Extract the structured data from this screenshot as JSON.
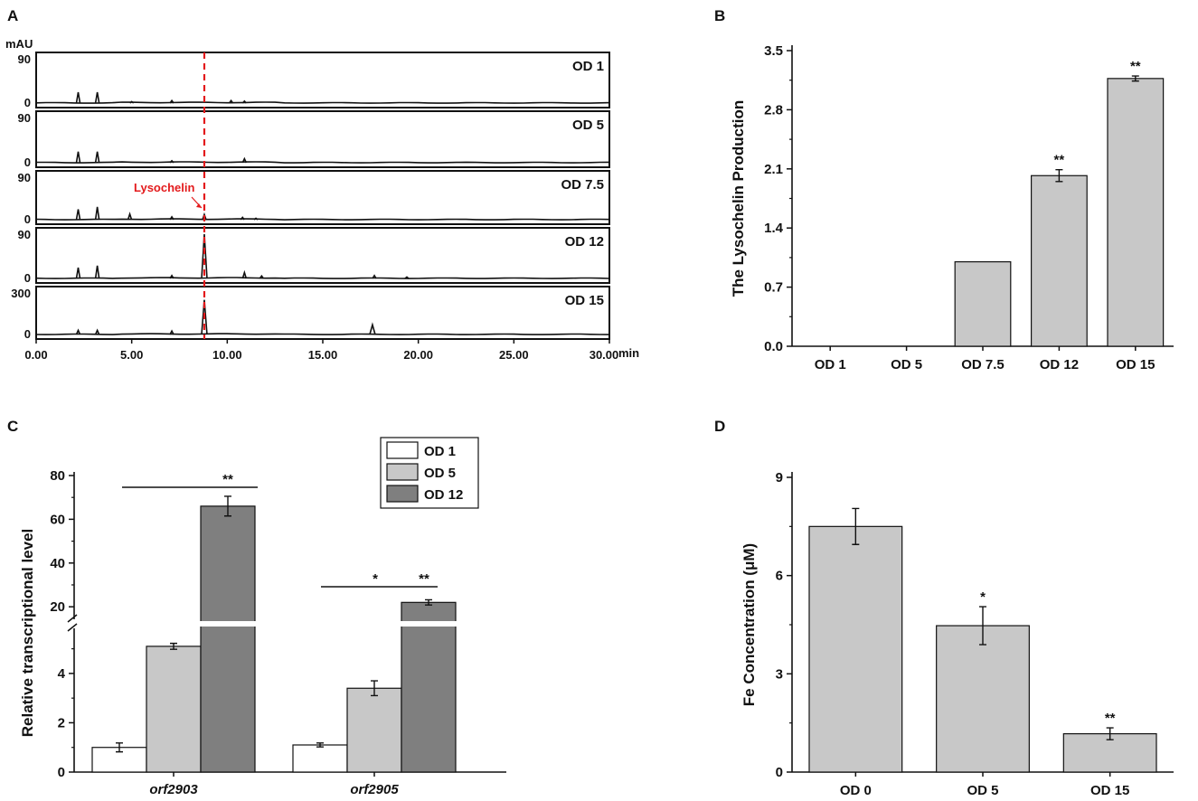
{
  "chart_data": [
    {
      "panel": "A",
      "type": "line",
      "ylabel": "mAU",
      "xlabel": "min",
      "xlim": [
        0,
        30
      ],
      "x_ticks": [
        "0.00",
        "5.00",
        "10.00",
        "15.00",
        "20.00",
        "25.00",
        "30.00"
      ],
      "marker_x": 8.8,
      "annotation": "Lysochelin",
      "traces": [
        {
          "name": "OD 1",
          "ymax_label": "90",
          "ymin_label": "0",
          "ymax": 90,
          "peaks": [
            [
              2.2,
              22
            ],
            [
              3.2,
              22
            ],
            [
              5.0,
              3
            ],
            [
              7.1,
              5
            ],
            [
              10.2,
              5
            ],
            [
              10.9,
              4
            ]
          ]
        },
        {
          "name": "OD 5",
          "ymax_label": "90",
          "ymin_label": "0",
          "ymax": 90,
          "peaks": [
            [
              2.2,
              22
            ],
            [
              3.2,
              22
            ],
            [
              7.1,
              4
            ],
            [
              10.9,
              8
            ]
          ]
        },
        {
          "name": "OD 7.5",
          "ymax_label": "90",
          "ymin_label": "0",
          "ymax": 90,
          "peaks": [
            [
              2.2,
              22
            ],
            [
              3.2,
              27
            ],
            [
              4.9,
              12
            ],
            [
              7.1,
              6
            ],
            [
              8.8,
              11
            ],
            [
              10.8,
              5
            ],
            [
              11.5,
              3
            ]
          ]
        },
        {
          "name": "OD 12",
          "ymax_label": "90",
          "ymin_label": "0",
          "ymax": 90,
          "peaks": [
            [
              2.2,
              22
            ],
            [
              3.2,
              26
            ],
            [
              7.1,
              6
            ],
            [
              8.8,
              90
            ],
            [
              10.9,
              12
            ],
            [
              11.8,
              5
            ],
            [
              17.7,
              6
            ],
            [
              19.4,
              3
            ]
          ]
        },
        {
          "name": "OD 15",
          "ymax_label": "300",
          "ymin_label": "0",
          "ymax": 300,
          "peaks": [
            [
              2.2,
              30
            ],
            [
              3.2,
              30
            ],
            [
              7.1,
              25
            ],
            [
              8.8,
              250
            ],
            [
              17.6,
              70
            ]
          ]
        }
      ]
    },
    {
      "panel": "B",
      "type": "bar",
      "categories": [
        "OD 1",
        "OD 5",
        "OD 7.5",
        "OD 12",
        "OD 15"
      ],
      "values": [
        0,
        0,
        1.0,
        2.02,
        3.17
      ],
      "errors": [
        0,
        0,
        0,
        0.07,
        0.03
      ],
      "significance": [
        "",
        "",
        "",
        "**",
        "**"
      ],
      "ylabel": "The Lysochelin Production",
      "ylim": [
        0,
        3.5
      ],
      "y_ticks": [
        "0.0",
        "0.7",
        "1.4",
        "2.1",
        "2.8",
        "3.5"
      ]
    },
    {
      "panel": "C",
      "type": "bar",
      "categories": [
        "orf2903",
        "orf2905"
      ],
      "series": [
        {
          "name": "OD 1",
          "color": "#ffffff",
          "values": [
            1.0,
            1.1
          ],
          "errors": [
            0.18,
            0.08
          ]
        },
        {
          "name": "OD 5",
          "color": "#c8c8c8",
          "values": [
            5.1,
            3.4
          ],
          "errors": [
            0.12,
            0.3
          ]
        },
        {
          "name": "OD 12",
          "color": "#7f7f7f",
          "values": [
            66,
            22
          ],
          "errors": [
            4.5,
            1.2
          ]
        }
      ],
      "ylabel": "Relative transcriptional level",
      "y_ticks_lower": [
        "0",
        "2",
        "4"
      ],
      "y_ticks_upper": [
        "20",
        "40",
        "60",
        "80"
      ],
      "axis_break": [
        5.5,
        18
      ],
      "significance": [
        {
          "group": "orf2903",
          "marks": [
            "**"
          ]
        },
        {
          "group": "orf2905",
          "marks": [
            "*",
            "**"
          ]
        }
      ]
    },
    {
      "panel": "D",
      "type": "bar",
      "categories": [
        "OD 0",
        "OD 5",
        "OD 15"
      ],
      "values": [
        7.5,
        4.47,
        1.17
      ],
      "errors": [
        0.55,
        0.58,
        0.18
      ],
      "significance": [
        "",
        "*",
        "**"
      ],
      "ylabel": "Fe Concentration (μM)",
      "ylim": [
        0,
        9
      ],
      "y_ticks": [
        "0",
        "3",
        "6",
        "9"
      ]
    }
  ]
}
